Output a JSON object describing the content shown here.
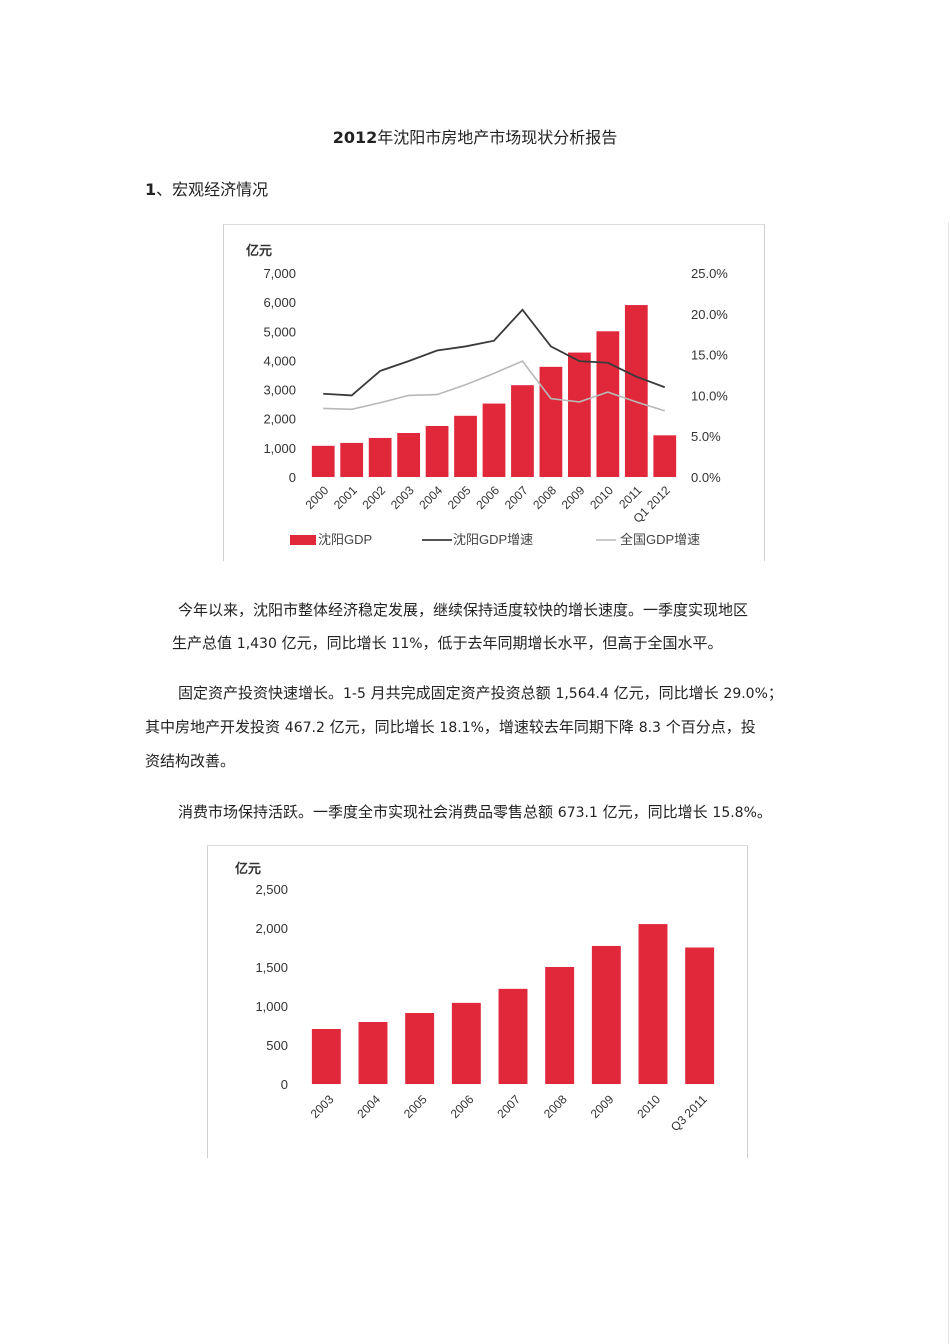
{
  "document": {
    "title_year": "2012",
    "title_rest": "年沈阳市房地产市场现状分析报告",
    "section1": {
      "number": "1",
      "label": "、宏观经济情况"
    },
    "paragraphs": {
      "p1_line1": "今年以来，沈阳市整体经济稳定发展，继续保持适度较快的增长速度。一季度实现地区",
      "p1_line2_a": "生产总值 ",
      "p1_line2_n1": "1,430",
      "p1_line2_b": " 亿元，同比增长 ",
      "p1_line2_n2": "11%",
      "p1_line2_c": "，低于去年同期增长水平，但高于全国水平。",
      "p2_line1_a": "固定资产投资快速增长。",
      "p2_line1_n1": "1-5",
      "p2_line1_b": " 月共完成固定资产投资总额 ",
      "p2_line1_n2": "1,564.4",
      "p2_line1_c": " 亿元，同比增长 ",
      "p2_line1_n3": "29.0%",
      "p2_line1_d": "；",
      "p2_line2_a": "其中房地产开发投资 ",
      "p2_line2_n1": "467.2",
      "p2_line2_b": " 亿元，同比增长 ",
      "p2_line2_n2": "18.1%",
      "p2_line2_c": "，增速较去年同期下降 ",
      "p2_line2_n3": "8.3",
      "p2_line2_d": " 个百分点，投",
      "p2_line3": "资结构改善。",
      "p3_a": "消费市场保持活跃。一季度全市实现社会消费品零售总额 ",
      "p3_n1": "673.1",
      "p3_b": " 亿元，同比增长 ",
      "p3_n2": "15.8%",
      "p3_c": "。"
    }
  },
  "colors": {
    "bar_red": "#e0283a",
    "line_dark": "#3a3a3a",
    "line_light": "#b8b8b8",
    "text": "#222222"
  },
  "chart_data": [
    {
      "type": "bar",
      "title": "",
      "ylabel": "亿元",
      "y2label": "",
      "categories": [
        "2000",
        "2001",
        "2002",
        "2003",
        "2004",
        "2005",
        "2006",
        "2007",
        "2008",
        "2009",
        "2010",
        "2011",
        "Q1 2012"
      ],
      "series": [
        {
          "name": "沈阳GDP",
          "type": "bar",
          "axis": "left",
          "values": [
            1070,
            1170,
            1340,
            1510,
            1750,
            2100,
            2520,
            3150,
            3780,
            4270,
            5000,
            5900,
            1430
          ]
        },
        {
          "name": "沈阳GDP增速",
          "type": "line",
          "axis": "right",
          "values": [
            10.2,
            10.0,
            13.0,
            14.2,
            15.5,
            16.0,
            16.7,
            20.5,
            16.0,
            14.2,
            14.0,
            12.3,
            11.0
          ]
        },
        {
          "name": "全国GDP增速",
          "type": "line",
          "axis": "right",
          "values": [
            8.4,
            8.3,
            9.1,
            10.0,
            10.1,
            11.3,
            12.7,
            14.2,
            9.6,
            9.2,
            10.4,
            9.2,
            8.1
          ]
        }
      ],
      "ylim": [
        0,
        7000
      ],
      "yticks": [
        "0",
        "1,000",
        "2,000",
        "3,000",
        "4,000",
        "5,000",
        "6,000",
        "7,000"
      ],
      "y2lim": [
        0,
        25
      ],
      "y2ticks": [
        "0.0%",
        "5.0%",
        "10.0%",
        "15.0%",
        "20.0%",
        "25.0%"
      ],
      "legend": [
        "沈阳GDP",
        "沈阳GDP增速",
        "全国GDP增速"
      ],
      "legend_position": "bottom",
      "grid": false
    },
    {
      "type": "bar",
      "title": "",
      "ylabel": "亿元",
      "categories": [
        "2003",
        "2004",
        "2005",
        "2006",
        "2007",
        "2008",
        "2009",
        "2010",
        "Q3 2011"
      ],
      "values": [
        705,
        795,
        910,
        1040,
        1220,
        1500,
        1770,
        2050,
        1750
      ],
      "ylim": [
        0,
        2500
      ],
      "yticks": [
        "0",
        "500",
        "1,000",
        "1,500",
        "2,000",
        "2,500"
      ],
      "grid": false
    }
  ]
}
